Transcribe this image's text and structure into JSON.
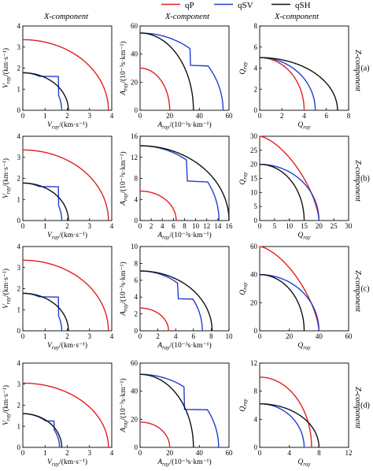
{
  "legend": {
    "position": "top-center",
    "items": [
      {
        "label": "qP",
        "color": "#e02020"
      },
      {
        "label": "qSV",
        "color": "#1f3fd0"
      },
      {
        "label": "qSH",
        "color": "#111111"
      }
    ]
  },
  "column_titles": [
    "X-component",
    "X-component",
    "X-component"
  ],
  "row_side_label": "Z-component",
  "row_tags": [
    "(a)",
    "(b)",
    "(c)",
    "(d)"
  ],
  "axis_labels": {
    "v": {
      "x": "V_ray /(km·s⁻¹)",
      "y": "V_ray /(km·s⁻¹)"
    },
    "a": {
      "x": "A_ray /(10⁻³s·km⁻¹)",
      "y": "A_ray /(10⁻³s·km⁻¹)"
    },
    "q": {
      "x": "Q_ray",
      "y": "Q_ray"
    }
  },
  "chart_data": [
    {
      "type": "line",
      "row": "a",
      "quantity": "velocity",
      "xlim": [
        0,
        4
      ],
      "ylim": [
        0,
        4
      ],
      "xticks": [
        0,
        1,
        2,
        3,
        4
      ],
      "yticks": [
        0,
        1,
        2,
        3,
        4
      ],
      "series": [
        {
          "name": "qP",
          "a": 3.85,
          "b": 3.35,
          "p": 2
        },
        {
          "name": "qSV",
          "a": 1.75,
          "b": 1.78,
          "p": 2,
          "cusp": [
            1.6,
            1.6
          ]
        },
        {
          "name": "qSH",
          "a": 2.05,
          "b": 1.78,
          "p": 2
        }
      ]
    },
    {
      "type": "line",
      "row": "a",
      "quantity": "slowness",
      "xlim": [
        0,
        60
      ],
      "ylim": [
        0,
        60
      ],
      "xticks": [
        0,
        20,
        40,
        60
      ],
      "yticks": [
        0,
        20,
        40,
        60
      ],
      "series": [
        {
          "name": "qP",
          "a": 20,
          "b": 30,
          "p": 2
        },
        {
          "name": "qSV",
          "a": 56,
          "b": 55,
          "p": 2,
          "cusp": [
            34,
            32
          ]
        },
        {
          "name": "qSH",
          "a": 36,
          "b": 55,
          "p": 2
        }
      ]
    },
    {
      "type": "line",
      "row": "a",
      "quantity": "Q",
      "xlim": [
        0,
        8
      ],
      "ylim": [
        0,
        8
      ],
      "xticks": [
        0,
        2,
        4,
        6,
        8
      ],
      "yticks": [
        0,
        2,
        4,
        6,
        8
      ],
      "series": [
        {
          "name": "qP",
          "a": 4.0,
          "b": 5.0,
          "p": 2
        },
        {
          "name": "qSV",
          "a": 5.0,
          "b": 5.0,
          "p": 2
        },
        {
          "name": "qSH",
          "a": 7.0,
          "b": 5.0,
          "p": 2
        }
      ]
    },
    {
      "type": "line",
      "row": "b",
      "quantity": "velocity",
      "xlim": [
        0,
        4
      ],
      "ylim": [
        0,
        4
      ],
      "xticks": [
        0,
        1,
        2,
        3,
        4
      ],
      "yticks": [
        0,
        1,
        2,
        3,
        4
      ],
      "series": [
        {
          "name": "qP",
          "a": 3.85,
          "b": 3.35,
          "p": 2
        },
        {
          "name": "qSV",
          "a": 1.75,
          "b": 1.78,
          "p": 2,
          "cusp": [
            1.6,
            1.6
          ]
        },
        {
          "name": "qSH",
          "a": 2.05,
          "b": 1.78,
          "p": 2
        }
      ]
    },
    {
      "type": "line",
      "row": "b",
      "quantity": "slowness",
      "xlim": [
        0,
        16
      ],
      "ylim": [
        0,
        16
      ],
      "xticks": [
        0,
        2,
        4,
        6,
        8,
        10,
        12,
        14,
        16
      ],
      "yticks": [
        0,
        4,
        8,
        12,
        16
      ],
      "series": [
        {
          "name": "qP",
          "a": 6.5,
          "b": 5.6,
          "p": 2
        },
        {
          "name": "qSV",
          "a": 14.2,
          "b": 14.2,
          "p": 2,
          "cusp": [
            8.5,
            7.5
          ]
        },
        {
          "name": "qSH",
          "a": 16.0,
          "b": 14.2,
          "p": 2
        }
      ]
    },
    {
      "type": "line",
      "row": "b",
      "quantity": "Q",
      "xlim": [
        0,
        30
      ],
      "ylim": [
        0,
        30
      ],
      "xticks": [
        0,
        5,
        10,
        15,
        20,
        25,
        30
      ],
      "yticks": [
        0,
        5,
        10,
        15,
        20,
        25,
        30
      ],
      "series": [
        {
          "name": "qP",
          "a": 20.0,
          "b": 30.0,
          "p": 1.5
        },
        {
          "name": "qSV",
          "a": 20.0,
          "b": 20.0,
          "p": 2
        },
        {
          "name": "qSH",
          "a": 15.0,
          "b": 20.0,
          "p": 2
        }
      ]
    },
    {
      "type": "line",
      "row": "c",
      "quantity": "velocity",
      "xlim": [
        0,
        4
      ],
      "ylim": [
        0,
        4
      ],
      "xticks": [
        0,
        1,
        2,
        3,
        4
      ],
      "yticks": [
        0,
        1,
        2,
        3,
        4
      ],
      "series": [
        {
          "name": "qP",
          "a": 3.85,
          "b": 3.35,
          "p": 2
        },
        {
          "name": "qSV",
          "a": 1.75,
          "b": 1.78,
          "p": 2,
          "cusp": [
            1.6,
            1.6
          ]
        },
        {
          "name": "qSH",
          "a": 2.05,
          "b": 1.78,
          "p": 2
        }
      ]
    },
    {
      "type": "line",
      "row": "c",
      "quantity": "slowness",
      "xlim": [
        0,
        10
      ],
      "ylim": [
        0,
        10
      ],
      "xticks": [
        0,
        2,
        4,
        6,
        8,
        10
      ],
      "yticks": [
        0,
        2,
        4,
        6,
        8,
        10
      ],
      "series": [
        {
          "name": "qP",
          "a": 3.2,
          "b": 2.7,
          "p": 2
        },
        {
          "name": "qSV",
          "a": 7.0,
          "b": 7.1,
          "p": 2,
          "cusp": [
            4.3,
            3.8
          ]
        },
        {
          "name": "qSH",
          "a": 8.1,
          "b": 7.1,
          "p": 2
        }
      ]
    },
    {
      "type": "line",
      "row": "c",
      "quantity": "Q",
      "xlim": [
        0,
        60
      ],
      "ylim": [
        0,
        60
      ],
      "xticks": [
        0,
        20,
        40,
        60
      ],
      "yticks": [
        0,
        20,
        40,
        60
      ],
      "series": [
        {
          "name": "qP",
          "a": 40.0,
          "b": 60.0,
          "p": 1.5
        },
        {
          "name": "qSV",
          "a": 40.0,
          "b": 40.0,
          "p": 2
        },
        {
          "name": "qSH",
          "a": 30.0,
          "b": 40.0,
          "p": 2
        }
      ]
    },
    {
      "type": "line",
      "row": "d",
      "quantity": "velocity",
      "xlim": [
        0,
        4
      ],
      "ylim": [
        0,
        4
      ],
      "xticks": [
        0,
        1,
        2,
        3,
        4
      ],
      "yticks": [
        0,
        1,
        2,
        3,
        4
      ],
      "series": [
        {
          "name": "qP",
          "a": 3.85,
          "b": 3.05,
          "p": 2
        },
        {
          "name": "qSV",
          "a": 1.65,
          "b": 1.6,
          "p": 2,
          "cusp": [
            1.4,
            1.25
          ]
        },
        {
          "name": "qSH",
          "a": 1.75,
          "b": 1.6,
          "p": 2
        }
      ]
    },
    {
      "type": "line",
      "row": "d",
      "quantity": "slowness",
      "xlim": [
        0,
        60
      ],
      "ylim": [
        0,
        60
      ],
      "xticks": [
        0,
        20,
        40,
        60
      ],
      "yticks": [
        0,
        20,
        40,
        60
      ],
      "series": [
        {
          "name": "qP",
          "a": 20,
          "b": 18,
          "p": 2
        },
        {
          "name": "qSV",
          "a": 53,
          "b": 52,
          "p": 2,
          "cusp": [
            30,
            27
          ]
        },
        {
          "name": "qSH",
          "a": 36,
          "b": 52,
          "p": 2
        }
      ]
    },
    {
      "type": "line",
      "row": "d",
      "quantity": "Q",
      "xlim": [
        0,
        12
      ],
      "ylim": [
        0,
        12
      ],
      "xticks": [
        0,
        4,
        8,
        12
      ],
      "yticks": [
        0,
        4,
        8,
        12
      ],
      "series": [
        {
          "name": "qP",
          "a": 7.0,
          "b": 10.0,
          "p": 2
        },
        {
          "name": "qSV",
          "a": 6.0,
          "b": 6.2,
          "p": 2
        },
        {
          "name": "qSH",
          "a": 8.0,
          "b": 6.2,
          "p": 2
        }
      ]
    }
  ]
}
